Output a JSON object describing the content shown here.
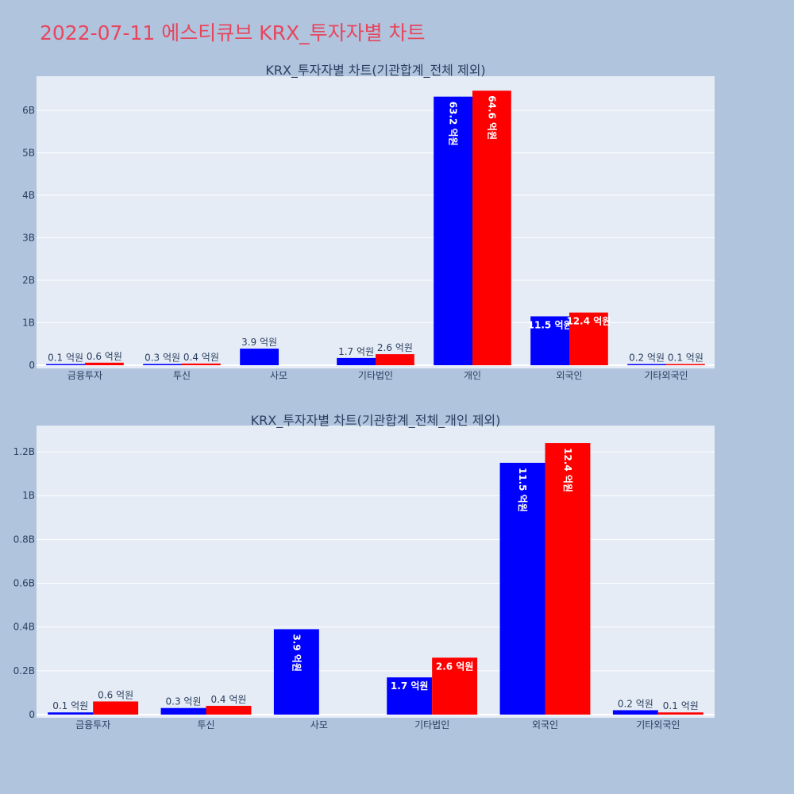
{
  "page_title": "2022-07-11 에스티큐브 KRX_투자자별 차트",
  "colors": {
    "series_a": "#0000ff",
    "series_b": "#ff0000",
    "plot_bg": "#e5ecf6",
    "paper_bg": "#b0c4de",
    "title": "#e8455c"
  },
  "chart_data": [
    {
      "type": "bar",
      "title": "KRX_투자자별 차트(기관합계_전체 제외)",
      "categories": [
        "금융투자",
        "투신",
        "사모",
        "기타법인",
        "개인",
        "외국인",
        "기타외국인"
      ],
      "ylim": [
        0,
        6.8
      ],
      "y_ticks": [
        0,
        1,
        2,
        3,
        4,
        5,
        6
      ],
      "y_tick_labels": [
        "0",
        "1B",
        "2B",
        "3B",
        "4B",
        "5B",
        "6B"
      ],
      "grid": true,
      "series": [
        {
          "values": [
            0.01,
            0.03,
            0.39,
            0.17,
            6.32,
            1.15,
            0.02
          ],
          "labels": [
            "0.1 억원",
            "0.3 억원",
            "3.9 억원",
            "1.7 억원",
            "63.2 억원",
            "11.5 억원",
            "0.2 억원"
          ]
        },
        {
          "values": [
            0.06,
            0.04,
            0,
            0.26,
            6.46,
            1.24,
            0.01
          ],
          "labels": [
            "0.6 억원",
            "0.4 억원",
            "",
            "2.6 억원",
            "64.6 억원",
            "12.4 억원",
            "0.1 억원"
          ]
        }
      ]
    },
    {
      "type": "bar",
      "title": "KRX_투자자별 차트(기관합계_전체_개인 제외)",
      "categories": [
        "금융투자",
        "투신",
        "사모",
        "기타법인",
        "외국인",
        "기타외국인"
      ],
      "ylim": [
        0,
        1.32
      ],
      "y_ticks": [
        0,
        0.2,
        0.4,
        0.6,
        0.8,
        1.0,
        1.2
      ],
      "y_tick_labels": [
        "0",
        "0.2B",
        "0.4B",
        "0.6B",
        "0.8B",
        "1B",
        "1.2B"
      ],
      "grid": true,
      "series": [
        {
          "values": [
            0.01,
            0.03,
            0.39,
            0.17,
            1.15,
            0.02
          ],
          "labels": [
            "0.1 억원",
            "0.3 억원",
            "3.9 억원",
            "1.7 억원",
            "11.5 억원",
            "0.2 억원"
          ]
        },
        {
          "values": [
            0.06,
            0.04,
            0,
            0.26,
            1.24,
            0.01
          ],
          "labels": [
            "0.6 억원",
            "0.4 억원",
            "",
            "2.6 억원",
            "12.4 억원",
            "0.1 억원"
          ]
        }
      ]
    }
  ]
}
